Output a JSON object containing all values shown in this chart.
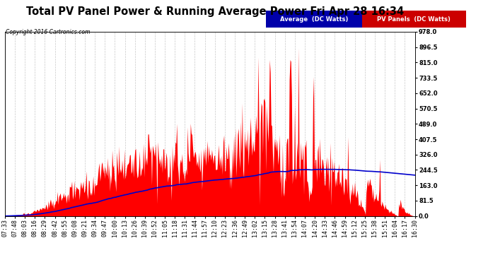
{
  "title": "Total PV Panel Power & Running Average Power Fri Apr 28 16:34",
  "copyright": "Copyright 2016 Cartronics.com",
  "legend_avg": "Average  (DC Watts)",
  "legend_pv": "PV Panels  (DC Watts)",
  "ylabel_right_values": [
    0.0,
    81.5,
    163.0,
    244.5,
    326.0,
    407.5,
    489.0,
    570.5,
    652.0,
    733.5,
    815.0,
    896.5,
    978.0
  ],
  "ymax": 978.0,
  "background_color": "#ffffff",
  "plot_bg_color": "#ffffff",
  "grid_color": "#c8c8c8",
  "fill_color": "#ff0000",
  "avg_line_color": "#0000cc",
  "title_fontsize": 10.5,
  "tick_fontsize": 6.0,
  "x_tick_labels": [
    "07:33",
    "07:48",
    "08:03",
    "08:16",
    "08:29",
    "08:42",
    "08:55",
    "09:08",
    "09:21",
    "09:34",
    "09:47",
    "10:00",
    "10:13",
    "10:26",
    "10:39",
    "10:52",
    "11:05",
    "11:18",
    "11:31",
    "11:44",
    "11:57",
    "12:10",
    "12:23",
    "12:36",
    "12:49",
    "13:02",
    "13:15",
    "13:28",
    "13:41",
    "13:54",
    "14:07",
    "14:20",
    "14:33",
    "14:46",
    "14:59",
    "15:12",
    "15:25",
    "15:38",
    "15:51",
    "16:04",
    "16:17",
    "16:30"
  ]
}
